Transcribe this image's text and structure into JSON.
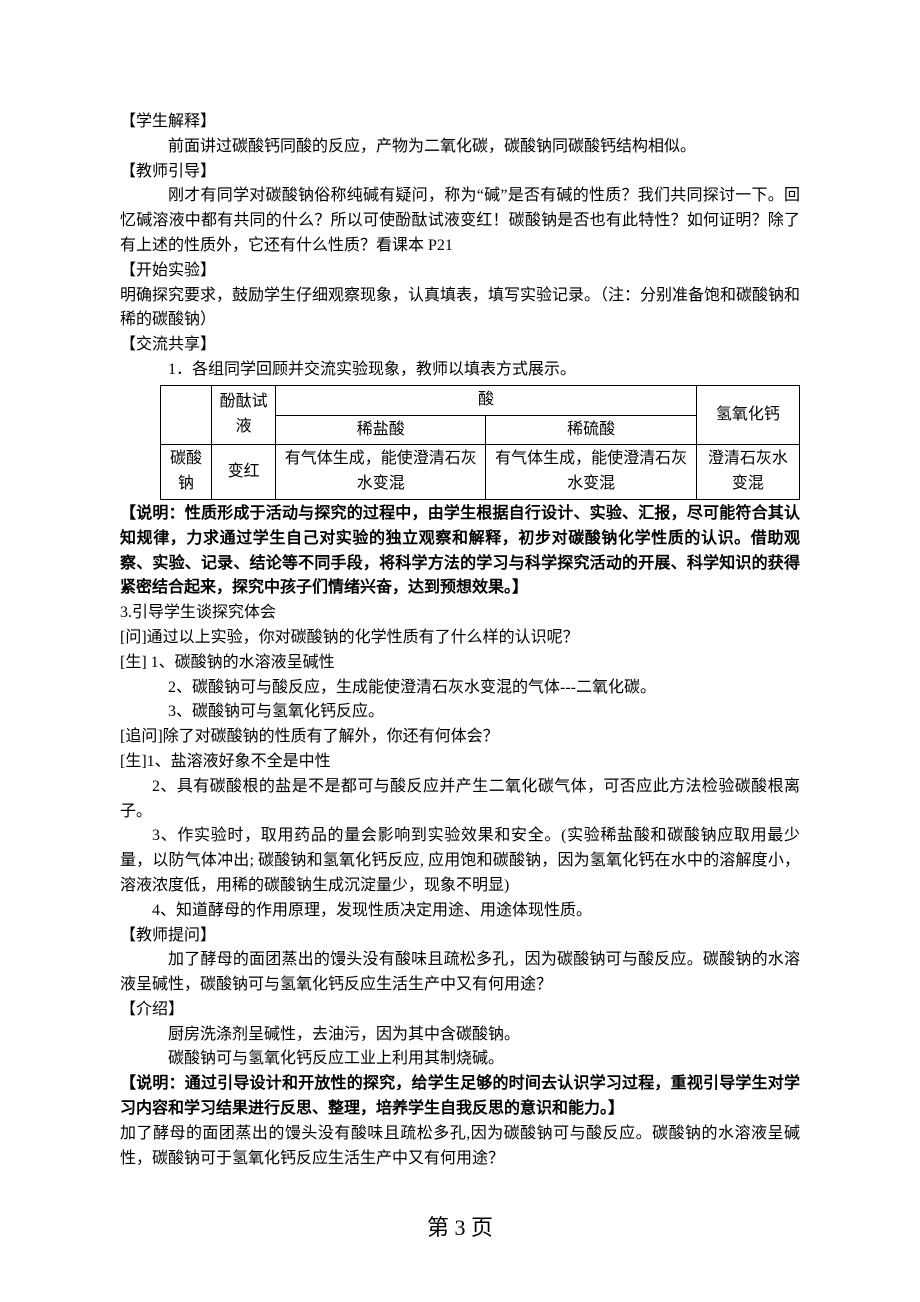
{
  "s1_label": "【学生解释】",
  "s1_body": "前面讲过碳酸钙同酸的反应，产物为二氧化碳，碳酸钠同碳酸钙结构相似。",
  "s2_label": "【教师引导】",
  "s2_body": "刚才有同学对碳酸钠俗称纯碱有疑问，称为“碱”是否有碱的性质？我们共同探讨一下。回忆碱溶液中都有共同的什么？所以可使酚酞试液变红！碳酸钠是否也有此特性？如何证明？除了有上述的性质外，它还有什么性质？看课本 P21",
  "s3_label": "【开始实验】",
  "s3_body": "明确探究要求，鼓励学生仔细观察现象，认真填表，填写实验记录。（注：分别准备饱和碳酸钠和稀的碳酸钠）",
  "s4_label": "【交流共享】",
  "s4_item": "1．各组同学回顾并交流实验现象，教师以填表方式展示。",
  "table": {
    "h_phenol": "酚酞试液",
    "h_acid": "酸",
    "h_caoh": "氢氧化钙",
    "h_hcl": "稀盐酸",
    "h_h2so4": "稀硫酸",
    "row_label": "碳酸钠",
    "c_phenol": "变红",
    "c_hcl": "有气体生成，能使澄清石灰水变混",
    "c_h2so4": "有气体生成，能使澄清石灰水变混",
    "c_caoh": "澄清石灰水变混"
  },
  "note1": "【说明：性质形成于活动与探究的过程中，由学生根据自行设计、实验、汇报，尽可能符合其认知规律，力求通过学生自己对实验的独立观察和解释，初步对碳酸钠化学性质的认识。借助观察、实验、记录、结论等不同手段，将科学方法的学习与科学探究活动的开展、科学知识的获得紧密结合起来，探究中孩子们情绪兴奋，达到预想效果。】",
  "s5": " 3.引导学生谈探究体会",
  "q1": "[问]通过以上实验，你对碳酸钠的化学性质有了什么样的认识呢？",
  "a1_1": "[生] 1、碳酸钠的水溶液呈碱性",
  "a1_2": "2、碳酸钠可与酸反应，生成能使澄清石灰水变混的气体---二氧化碳。",
  "a1_3": "3、碳酸钠可与氢氧化钙反应。",
  "q2": "[追问]除了对碳酸钠的性质有了解外，你还有何体会？",
  "a2_1": "[生]1、盐溶液好象不全是中性",
  "a2_2": "2、具有碳酸根的盐是不是都可与酸反应并产生二氧化碳气体，可否应此方法检验碳酸根离子。",
  "a2_3": "3、作实验时，取用药品的量会影响到实验效果和安全。(实验稀盐酸和碳酸钠应取用最少量，以防气体冲出; 碳酸钠和氢氧化钙反应, 应用饱和碳酸钠，因为氢氧化钙在水中的溶解度小，溶液浓度低，用稀的碳酸钠生成沉淀量少，现象不明显)",
  "a2_4": "4、知道酵母的作用原理，发现性质决定用途、用途体现性质。",
  "s6_label": "【教师提问】",
  "s6_body": "加了酵母的面团蒸出的馒头没有酸味且疏松多孔，因为碳酸钠可与酸反应。碳酸钠的水溶液呈碱性，碳酸钠可与氢氧化钙反应生活生产中又有何用途？",
  "s7_label": "【介绍】",
  "s7_1": "厨房洗涤剂呈碱性，去油污，因为其中含碳酸钠。",
  "s7_2": "碳酸钠可与氢氧化钙反应工业上利用其制烧碱。",
  "note2": "【说明：通过引导设计和开放性的探究，给学生足够的时间去认识学习过程，重视引导学生对学习内容和学习结果进行反思、整理，培养学生自我反思的意识和能力。】",
  "tail": "加了酵母的面团蒸出的馒头没有酸味且疏松多孔,因为碳酸钠可与酸反应。碳酸钠的水溶液呈碱性，碳酸钠可于氢氧化钙反应生活生产中又有何用途？",
  "footer": "第 3 页"
}
